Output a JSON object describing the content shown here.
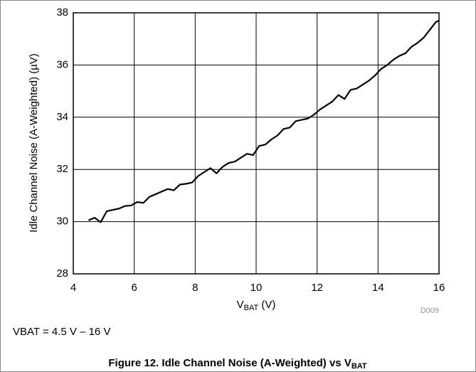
{
  "chart_data": {
    "type": "line",
    "y_label": "Idle Channel Noise (A-Weighted) (µV)",
    "x_label": [
      "V",
      "BAT",
      " (V)"
    ],
    "code": "D009",
    "note": "VBAT = 4.5 V – 16 V",
    "caption": [
      "Figure 12. Idle Channel Noise (A-Weighted) vs V",
      "BAT"
    ],
    "x": [
      4.5,
      4.7,
      4.9,
      5.1,
      5.3,
      5.5,
      5.7,
      5.9,
      6.1,
      6.3,
      6.5,
      6.7,
      6.9,
      7.1,
      7.3,
      7.5,
      7.7,
      7.9,
      8.1,
      8.3,
      8.5,
      8.7,
      8.9,
      9.1,
      9.3,
      9.5,
      9.7,
      9.9,
      10.1,
      10.3,
      10.5,
      10.7,
      10.9,
      11.1,
      11.3,
      11.5,
      11.7,
      11.9,
      12.1,
      12.3,
      12.5,
      12.7,
      12.9,
      13.1,
      13.3,
      13.5,
      13.7,
      13.9,
      14.1,
      14.3,
      14.5,
      14.7,
      14.9,
      15.1,
      15.3,
      15.5,
      15.7,
      15.9,
      16.0
    ],
    "series": [
      {
        "color": "#000000",
        "values": [
          30.05,
          30.15,
          29.98,
          30.4,
          30.45,
          30.5,
          30.6,
          30.62,
          30.75,
          30.72,
          30.95,
          31.05,
          31.15,
          31.25,
          31.2,
          31.42,
          31.45,
          31.5,
          31.75,
          31.9,
          32.05,
          31.85,
          32.1,
          32.25,
          32.3,
          32.45,
          32.6,
          32.55,
          32.9,
          32.95,
          33.15,
          33.3,
          33.55,
          33.6,
          33.85,
          33.9,
          33.95,
          34.1,
          34.3,
          34.45,
          34.6,
          34.85,
          34.7,
          35.05,
          35.1,
          35.25,
          35.4,
          35.6,
          35.85,
          36.0,
          36.2,
          36.35,
          36.45,
          36.7,
          36.85,
          37.05,
          37.35,
          37.65,
          37.7
        ]
      }
    ],
    "xlim": [
      4,
      16
    ],
    "xticks": [
      4,
      6,
      8,
      10,
      12,
      14,
      16
    ],
    "ylim": [
      28,
      38
    ],
    "yticks": [
      28,
      30,
      32,
      34,
      36,
      38
    ],
    "grid": true
  }
}
